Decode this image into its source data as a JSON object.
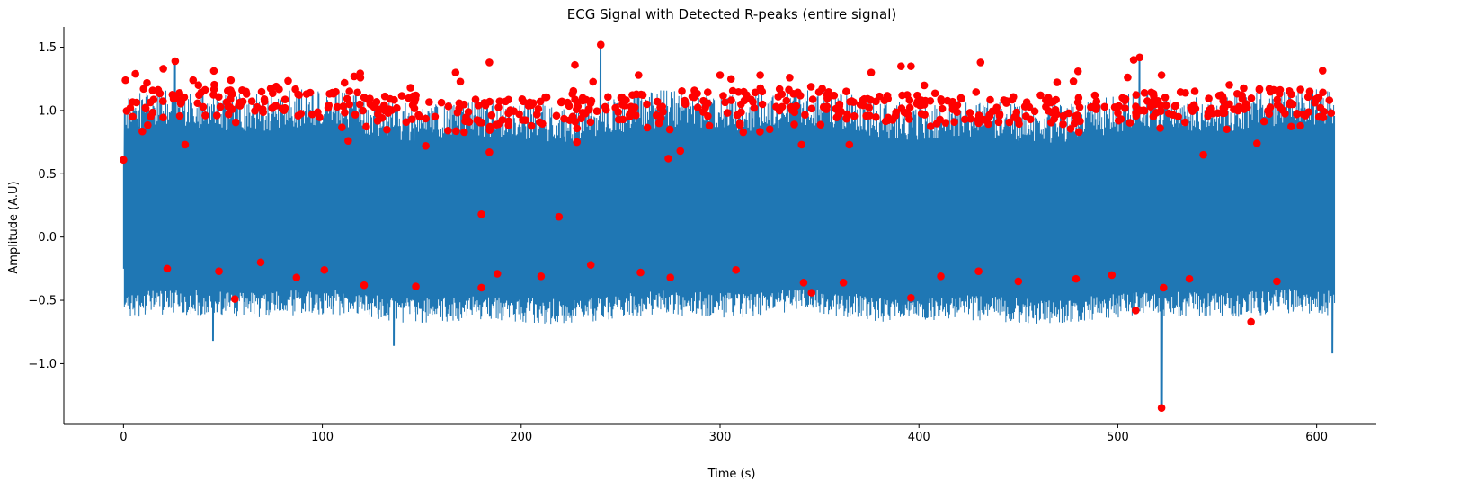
{
  "chart_data": {
    "type": "line",
    "title": "ECG Signal with Detected R-peaks (entire signal)",
    "xlabel": "Time (s)",
    "ylabel": "Amplitude (A.U)",
    "xlim": [
      -30,
      630
    ],
    "ylim": [
      -1.48,
      1.66
    ],
    "xticks": [
      0,
      100,
      200,
      300,
      400,
      500,
      600
    ],
    "xtick_labels": [
      "0",
      "100",
      "200",
      "300",
      "400",
      "500",
      "600"
    ],
    "yticks": [
      -1.0,
      -0.5,
      0.0,
      0.5,
      1.0,
      1.5
    ],
    "ytick_labels": [
      "−1.0",
      "−0.5",
      "0.0",
      "0.5",
      "1.0",
      "1.5"
    ],
    "grid": false,
    "series": [
      {
        "role": "ecg-signal",
        "color": "#1f77b4",
        "x_range": [
          0,
          609
        ],
        "upper_envelope_typical": 1.05,
        "lower_envelope_typical": -0.45,
        "notable_extremes": [
          {
            "x": 240,
            "y": 1.52
          },
          {
            "x": 26,
            "y": 1.39
          },
          {
            "x": 511,
            "y": 1.42
          },
          {
            "x": 522,
            "y": -1.35
          },
          {
            "x": 45,
            "y": -0.82
          },
          {
            "x": 136,
            "y": -0.86
          },
          {
            "x": 608,
            "y": -0.92
          }
        ]
      },
      {
        "role": "r-peaks",
        "color": "#ff0000",
        "marker": "circle",
        "notable_points": [
          {
            "x": 0,
            "y": 0.61
          },
          {
            "x": 1,
            "y": 1.24
          },
          {
            "x": 6,
            "y": 1.29
          },
          {
            "x": 20,
            "y": 1.33
          },
          {
            "x": 26,
            "y": 1.39
          },
          {
            "x": 35,
            "y": 1.24
          },
          {
            "x": 54,
            "y": 1.24
          },
          {
            "x": 116,
            "y": 1.27
          },
          {
            "x": 167,
            "y": 1.3
          },
          {
            "x": 184,
            "y": 1.38
          },
          {
            "x": 227,
            "y": 1.36
          },
          {
            "x": 240,
            "y": 1.52
          },
          {
            "x": 259,
            "y": 1.28
          },
          {
            "x": 300,
            "y": 1.28
          },
          {
            "x": 335,
            "y": 1.26
          },
          {
            "x": 376,
            "y": 1.3
          },
          {
            "x": 391,
            "y": 1.35
          },
          {
            "x": 396,
            "y": 1.35
          },
          {
            "x": 431,
            "y": 1.38
          },
          {
            "x": 480,
            "y": 1.31
          },
          {
            "x": 508,
            "y": 1.4
          },
          {
            "x": 511,
            "y": 1.42
          },
          {
            "x": 522,
            "y": 1.28
          },
          {
            "x": 31,
            "y": 0.73
          },
          {
            "x": 113,
            "y": 0.76
          },
          {
            "x": 152,
            "y": 0.72
          },
          {
            "x": 184,
            "y": 0.67
          },
          {
            "x": 228,
            "y": 0.75
          },
          {
            "x": 274,
            "y": 0.62
          },
          {
            "x": 280,
            "y": 0.68
          },
          {
            "x": 341,
            "y": 0.73
          },
          {
            "x": 365,
            "y": 0.73
          },
          {
            "x": 543,
            "y": 0.65
          },
          {
            "x": 570,
            "y": 0.74
          },
          {
            "x": 180,
            "y": 0.18
          },
          {
            "x": 219,
            "y": 0.16
          },
          {
            "x": 22,
            "y": -0.25
          },
          {
            "x": 48,
            "y": -0.27
          },
          {
            "x": 56,
            "y": -0.49
          },
          {
            "x": 69,
            "y": -0.2
          },
          {
            "x": 87,
            "y": -0.32
          },
          {
            "x": 101,
            "y": -0.26
          },
          {
            "x": 121,
            "y": -0.38
          },
          {
            "x": 147,
            "y": -0.39
          },
          {
            "x": 180,
            "y": -0.4
          },
          {
            "x": 188,
            "y": -0.29
          },
          {
            "x": 210,
            "y": -0.31
          },
          {
            "x": 235,
            "y": -0.22
          },
          {
            "x": 260,
            "y": -0.28
          },
          {
            "x": 275,
            "y": -0.32
          },
          {
            "x": 308,
            "y": -0.26
          },
          {
            "x": 342,
            "y": -0.36
          },
          {
            "x": 346,
            "y": -0.44
          },
          {
            "x": 362,
            "y": -0.36
          },
          {
            "x": 396,
            "y": -0.48
          },
          {
            "x": 411,
            "y": -0.31
          },
          {
            "x": 430,
            "y": -0.27
          },
          {
            "x": 450,
            "y": -0.35
          },
          {
            "x": 479,
            "y": -0.33
          },
          {
            "x": 497,
            "y": -0.3
          },
          {
            "x": 509,
            "y": -0.58
          },
          {
            "x": 523,
            "y": -0.4
          },
          {
            "x": 536,
            "y": -0.33
          },
          {
            "x": 567,
            "y": -0.67
          },
          {
            "x": 580,
            "y": -0.35
          },
          {
            "x": 522,
            "y": -1.35
          }
        ]
      }
    ]
  }
}
